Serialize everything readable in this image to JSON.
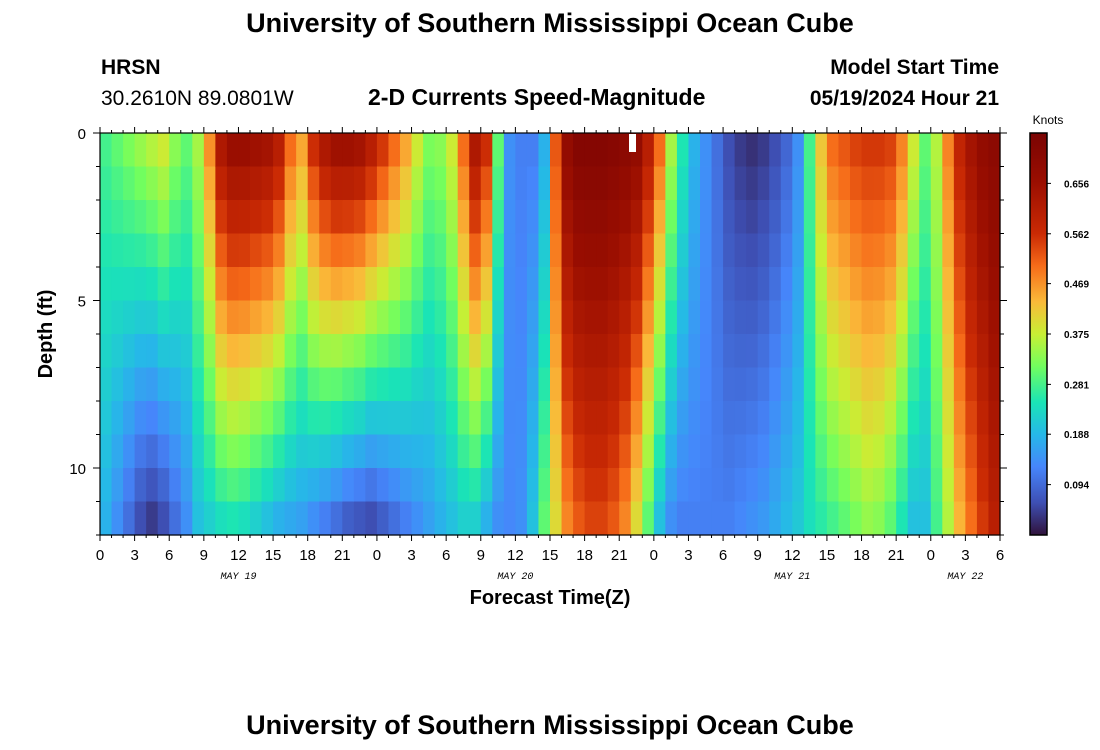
{
  "header": {
    "title_top": "University of Southern Mississippi Ocean Cube",
    "station": "HRSN",
    "coords": "30.2610N  89.0801W",
    "chart_title": "2-D Currents Speed-Magnitude",
    "model_start_label": "Model Start Time",
    "model_start_value": "05/19/2024 Hour 21",
    "title_bottom": "University of Southern Mississippi Ocean Cube"
  },
  "chart_data": {
    "type": "heatmap",
    "title": "2-D Currents Speed-Magnitude",
    "xlabel": "Forecast Time(Z)",
    "ylabel": "Depth (ft)",
    "colorbar_label": "Knots",
    "colorbar_ticks": [
      "0.094",
      "0.188",
      "0.281",
      "0.375",
      "0.469",
      "0.562",
      "0.656"
    ],
    "colorbar_range": [
      0,
      0.75
    ],
    "x_ticks": [
      "0",
      "3",
      "6",
      "9",
      "12",
      "15",
      "18",
      "21",
      "0",
      "3",
      "6",
      "9",
      "12",
      "15",
      "18",
      "21",
      "0",
      "3",
      "6",
      "9",
      "12",
      "15",
      "18",
      "21",
      "0",
      "3",
      "6"
    ],
    "x_range_hours": [
      0,
      78
    ],
    "date_labels": [
      {
        "text": "MAY 19",
        "hour": 12
      },
      {
        "text": "MAY 20",
        "hour": 36
      },
      {
        "text": "MAY 21",
        "hour": 60
      },
      {
        "text": "MAY 22",
        "hour": 75
      }
    ],
    "y_ticks": [
      "0",
      "5",
      "10"
    ],
    "y_range_ft": [
      0,
      12
    ],
    "depth_levels_ft": [
      0.5,
      1.5,
      2.5,
      3.5,
      4.5,
      5.5,
      6.5,
      7.5,
      8.5,
      9.5,
      10.5,
      11.5
    ],
    "hours": [
      0,
      1,
      2,
      3,
      4,
      5,
      6,
      7,
      8,
      9,
      10,
      11,
      12,
      13,
      14,
      15,
      16,
      17,
      18,
      19,
      20,
      21,
      22,
      23,
      24,
      25,
      26,
      27,
      28,
      29,
      30,
      31,
      32,
      33,
      34,
      35,
      36,
      37,
      38,
      39,
      40,
      41,
      42,
      43,
      44,
      45,
      46,
      47,
      48,
      49,
      50,
      51,
      52,
      53,
      54,
      55,
      56,
      57,
      58,
      59,
      60,
      61,
      62,
      63,
      64,
      65,
      66,
      67,
      68,
      69,
      70,
      71,
      72,
      73,
      74,
      75,
      76,
      77
    ],
    "speed_surface_knots": [
      0.28,
      0.3,
      0.32,
      0.34,
      0.36,
      0.38,
      0.33,
      0.3,
      0.35,
      0.47,
      0.62,
      0.66,
      0.66,
      0.65,
      0.64,
      0.6,
      0.5,
      0.45,
      0.56,
      0.62,
      0.65,
      0.65,
      0.64,
      0.6,
      0.55,
      0.5,
      0.45,
      0.38,
      0.32,
      0.33,
      0.38,
      0.5,
      0.62,
      0.56,
      0.3,
      0.14,
      0.12,
      0.12,
      0.18,
      0.52,
      0.68,
      0.72,
      0.72,
      0.72,
      0.71,
      0.7,
      0.68,
      0.6,
      0.5,
      0.35,
      0.25,
      0.18,
      0.14,
      0.1,
      0.06,
      0.04,
      0.03,
      0.04,
      0.06,
      0.09,
      0.14,
      0.28,
      0.42,
      0.5,
      0.52,
      0.54,
      0.55,
      0.55,
      0.54,
      0.48,
      0.38,
      0.3,
      0.36,
      0.48,
      0.58,
      0.64,
      0.68,
      0.7
    ],
    "speed_bottom_knots": [
      0.18,
      0.14,
      0.1,
      0.06,
      0.04,
      0.06,
      0.1,
      0.14,
      0.2,
      0.22,
      0.24,
      0.25,
      0.24,
      0.22,
      0.2,
      0.18,
      0.17,
      0.16,
      0.14,
      0.12,
      0.1,
      0.08,
      0.07,
      0.06,
      0.08,
      0.1,
      0.12,
      0.14,
      0.16,
      0.18,
      0.2,
      0.22,
      0.22,
      0.18,
      0.14,
      0.13,
      0.14,
      0.2,
      0.3,
      0.4,
      0.48,
      0.52,
      0.54,
      0.54,
      0.52,
      0.48,
      0.4,
      0.3,
      0.2,
      0.14,
      0.12,
      0.12,
      0.12,
      0.12,
      0.12,
      0.13,
      0.14,
      0.15,
      0.17,
      0.19,
      0.21,
      0.24,
      0.26,
      0.28,
      0.3,
      0.32,
      0.34,
      0.33,
      0.3,
      0.25,
      0.2,
      0.2,
      0.28,
      0.36,
      0.44,
      0.5,
      0.55,
      0.6
    ]
  }
}
